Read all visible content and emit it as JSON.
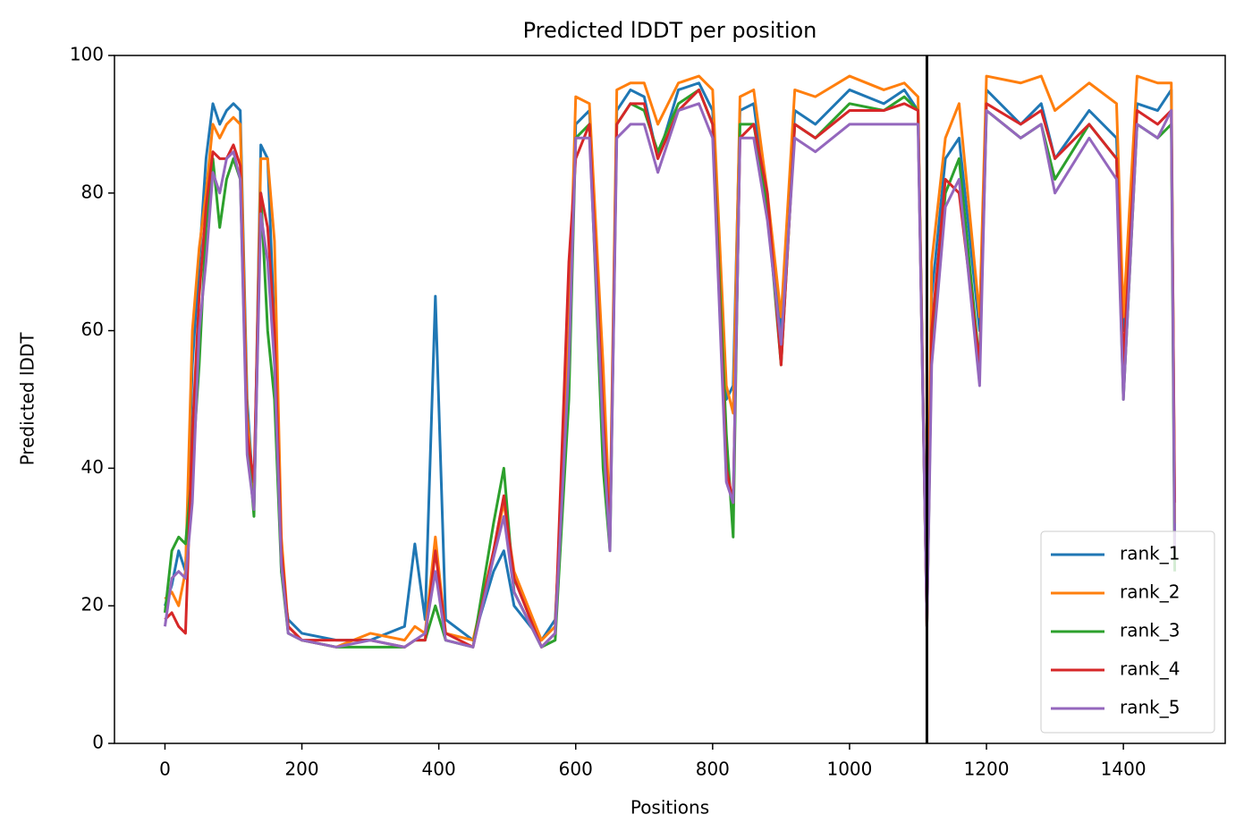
{
  "chart_data": {
    "type": "line",
    "title": "Predicted lDDT per position",
    "xlabel": "Positions",
    "ylabel": "Predicted lDDT",
    "x": [
      0,
      10,
      20,
      30,
      40,
      50,
      60,
      70,
      80,
      90,
      100,
      110,
      120,
      130,
      140,
      150,
      160,
      170,
      180,
      200,
      250,
      300,
      350,
      365,
      380,
      395,
      410,
      450,
      480,
      495,
      510,
      550,
      570,
      590,
      600,
      620,
      640,
      650,
      660,
      680,
      700,
      720,
      750,
      780,
      800,
      820,
      830,
      840,
      860,
      880,
      900,
      920,
      950,
      1000,
      1050,
      1080,
      1100,
      1113,
      1120,
      1140,
      1160,
      1190,
      1200,
      1250,
      1280,
      1300,
      1350,
      1390,
      1400,
      1420,
      1450,
      1470,
      1475
    ],
    "series": [
      {
        "name": "rank_1",
        "color": "#1f77b4",
        "values": [
          20,
          23,
          28,
          25,
          55,
          70,
          85,
          93,
          90,
          92,
          93,
          92,
          50,
          35,
          87,
          85,
          60,
          25,
          18,
          16,
          15,
          15,
          17,
          29,
          18,
          65,
          18,
          15,
          25,
          28,
          20,
          15,
          18,
          55,
          90,
          92,
          50,
          30,
          92,
          95,
          94,
          85,
          95,
          96,
          92,
          50,
          52,
          92,
          93,
          78,
          60,
          92,
          90,
          95,
          93,
          95,
          92,
          18,
          65,
          85,
          88,
          60,
          95,
          90,
          93,
          85,
          92,
          88,
          60,
          93,
          92,
          95,
          30
        ]
      },
      {
        "name": "rank_2",
        "color": "#ff7f0e",
        "values": [
          21,
          22,
          20,
          25,
          60,
          72,
          80,
          90,
          88,
          90,
          91,
          90,
          48,
          35,
          85,
          85,
          73,
          30,
          17,
          15,
          14,
          16,
          15,
          17,
          16,
          30,
          16,
          15,
          28,
          35,
          25,
          15,
          17,
          60,
          94,
          93,
          55,
          32,
          95,
          96,
          96,
          90,
          96,
          97,
          95,
          52,
          48,
          94,
          95,
          80,
          62,
          95,
          94,
          97,
          95,
          96,
          94,
          17,
          70,
          88,
          93,
          62,
          97,
          96,
          97,
          92,
          96,
          93,
          62,
          97,
          96,
          96,
          32
        ]
      },
      {
        "name": "rank_3",
        "color": "#2ca02c",
        "values": [
          19,
          28,
          30,
          29,
          40,
          55,
          75,
          85,
          75,
          82,
          85,
          82,
          45,
          33,
          80,
          60,
          50,
          25,
          16,
          15,
          14,
          14,
          14,
          15,
          15,
          20,
          15,
          14,
          32,
          40,
          22,
          14,
          15,
          50,
          88,
          90,
          40,
          28,
          90,
          93,
          92,
          86,
          93,
          95,
          90,
          45,
          30,
          90,
          90,
          78,
          55,
          90,
          88,
          93,
          92,
          94,
          92,
          17,
          58,
          80,
          85,
          55,
          92,
          88,
          90,
          82,
          90,
          85,
          50,
          90,
          88,
          90,
          25
        ]
      },
      {
        "name": "rank_4",
        "color": "#d62728",
        "values": [
          18,
          19,
          17,
          16,
          45,
          65,
          78,
          86,
          85,
          85,
          87,
          84,
          45,
          38,
          80,
          75,
          60,
          28,
          17,
          15,
          15,
          15,
          14,
          15,
          15,
          28,
          16,
          14,
          28,
          36,
          24,
          14,
          16,
          70,
          85,
          90,
          48,
          30,
          90,
          93,
          93,
          85,
          92,
          95,
          90,
          40,
          35,
          88,
          90,
          80,
          55,
          90,
          88,
          92,
          92,
          93,
          92,
          17,
          60,
          82,
          80,
          55,
          93,
          90,
          92,
          85,
          90,
          85,
          55,
          92,
          90,
          92,
          35
        ]
      },
      {
        "name": "rank_5",
        "color": "#9467bd",
        "values": [
          17,
          24,
          25,
          24,
          35,
          60,
          70,
          83,
          80,
          85,
          86,
          82,
          42,
          34,
          77,
          70,
          55,
          26,
          16,
          15,
          14,
          15,
          14,
          15,
          16,
          25,
          15,
          14,
          27,
          33,
          22,
          14,
          16,
          55,
          88,
          88,
          45,
          28,
          88,
          90,
          90,
          83,
          92,
          93,
          88,
          38,
          35,
          88,
          88,
          76,
          58,
          88,
          86,
          90,
          90,
          90,
          90,
          17,
          55,
          78,
          82,
          52,
          92,
          88,
          90,
          80,
          88,
          82,
          50,
          90,
          88,
          92,
          28
        ]
      }
    ],
    "vline": 1113,
    "xlim": [
      -73.75,
      1548.75
    ],
    "xticks": [
      0,
      200,
      400,
      600,
      800,
      1000,
      1200,
      1400
    ],
    "ylim": [
      0,
      100
    ],
    "yticks": [
      0,
      20,
      40,
      60,
      80,
      100
    ],
    "legend": "lower right"
  }
}
